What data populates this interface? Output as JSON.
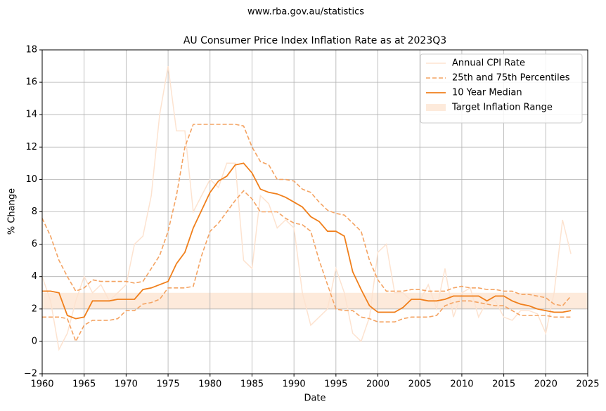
{
  "chart_data": {
    "type": "line",
    "suptitle": "www.rba.gov.au/statistics",
    "title": "AU Consumer Price Index Inflation Rate as at 2023Q3",
    "xlabel": "Date",
    "ylabel": "% Change",
    "xlim": [
      1960,
      2025
    ],
    "xticks": [
      1960,
      1965,
      1970,
      1975,
      1980,
      1985,
      1990,
      1995,
      2000,
      2005,
      2010,
      2015,
      2020,
      2025
    ],
    "ylim": [
      -2,
      18
    ],
    "yticks": [
      {
        "value": -2,
        "label": "−2"
      },
      0,
      2,
      4,
      6,
      8,
      10,
      12,
      14,
      16,
      18
    ],
    "grid": true,
    "legend": "upper right",
    "x": [
      1960,
      1961,
      1962,
      1963,
      1964,
      1965,
      1966,
      1967,
      1968,
      1969,
      1970,
      1971,
      1972,
      1973,
      1974,
      1975,
      1976,
      1977,
      1978,
      1979,
      1980,
      1981,
      1982,
      1983,
      1984,
      1985,
      1986,
      1987,
      1988,
      1989,
      1990,
      1991,
      1992,
      1993,
      1994,
      1995,
      1996,
      1997,
      1998,
      1999,
      2000,
      2001,
      2002,
      2003,
      2004,
      2005,
      2006,
      2007,
      2008,
      2009,
      2010,
      2011,
      2012,
      2013,
      2014,
      2015,
      2016,
      2017,
      2018,
      2019,
      2020,
      2021,
      2022,
      2023
    ],
    "series": [
      {
        "name": "Annual CPI Rate",
        "color": "#fde3d0",
        "linestyle": "solid",
        "width": 1.5,
        "values": [
          4,
          2.5,
          -0.5,
          0.5,
          2.5,
          4,
          3,
          3.5,
          2.5,
          3,
          3.5,
          6,
          6.5,
          9,
          14,
          17,
          13,
          13,
          8,
          9,
          10,
          9.5,
          11,
          11,
          5,
          4.5,
          9,
          8.5,
          7,
          7.5,
          7,
          3,
          1,
          1.5,
          2,
          4.5,
          3,
          0.5,
          0,
          1.5,
          5.5,
          6,
          3,
          3,
          2.5,
          2.5,
          3.5,
          2,
          4.5,
          1.5,
          3,
          3.3,
          1.5,
          2.5,
          2.5,
          1.5,
          1.3,
          1.9,
          1.9,
          1.7,
          0.5,
          3,
          7.5,
          5.4
        ]
      },
      {
        "name": "25th and 75th Percentiles",
        "color": "#f4a362",
        "linestyle": "dashed",
        "width": 1.6,
        "upper": [
          7.6,
          6.5,
          5,
          4,
          3.1,
          3.3,
          3.8,
          3.7,
          3.7,
          3.7,
          3.7,
          3.6,
          3.7,
          4.5,
          5.3,
          6.8,
          9,
          12,
          13.4,
          13.4,
          13.4,
          13.4,
          13.4,
          13.4,
          13.3,
          12,
          11.1,
          10.9,
          10,
          10,
          9.9,
          9.4,
          9.2,
          8.6,
          8.1,
          7.9,
          7.8,
          7.3,
          6.8,
          5,
          3.8,
          3.1,
          3.1,
          3.1,
          3.2,
          3.2,
          3.1,
          3.1,
          3.1,
          3.3,
          3.4,
          3.3,
          3.3,
          3.2,
          3.2,
          3.1,
          3.1,
          2.9,
          2.9,
          2.8,
          2.7,
          2.3,
          2.2,
          2.8
        ],
        "lower": [
          1.5,
          1.5,
          1.5,
          1.4,
          0,
          1,
          1.3,
          1.3,
          1.3,
          1.4,
          1.9,
          1.9,
          2.3,
          2.4,
          2.6,
          3.3,
          3.3,
          3.3,
          3.4,
          5.3,
          6.8,
          7.3,
          8,
          8.7,
          9.3,
          8.8,
          8,
          8,
          8,
          7.6,
          7.3,
          7.2,
          6.8,
          5,
          3.5,
          2,
          1.9,
          1.9,
          1.5,
          1.4,
          1.2,
          1.2,
          1.2,
          1.4,
          1.5,
          1.5,
          1.5,
          1.6,
          2.2,
          2.4,
          2.5,
          2.5,
          2.4,
          2.3,
          2.2,
          2.2,
          1.9,
          1.6,
          1.6,
          1.6,
          1.6,
          1.5,
          1.5,
          1.5
        ]
      },
      {
        "name": "10 Year Median",
        "color": "#f07f1b",
        "linestyle": "solid",
        "width": 1.8,
        "values": [
          3.1,
          3.1,
          3,
          1.6,
          1.4,
          1.5,
          2.5,
          2.5,
          2.5,
          2.6,
          2.6,
          2.6,
          3.2,
          3.3,
          3.5,
          3.7,
          4.8,
          5.5,
          7,
          8.1,
          9.2,
          9.9,
          10.2,
          10.9,
          11,
          10.4,
          9.4,
          9.2,
          9.1,
          8.9,
          8.6,
          8.3,
          7.7,
          7.4,
          6.8,
          6.8,
          6.5,
          4.3,
          3.2,
          2.2,
          1.8,
          1.8,
          1.8,
          2.1,
          2.6,
          2.6,
          2.5,
          2.5,
          2.6,
          2.8,
          2.8,
          2.8,
          2.8,
          2.5,
          2.8,
          2.8,
          2.5,
          2.3,
          2.2,
          2,
          1.9,
          1.8,
          1.8,
          1.9
        ]
      }
    ],
    "target_range": {
      "name": "Target Inflation Range",
      "color": "#fdeadb",
      "low": 2,
      "high": 3
    }
  }
}
